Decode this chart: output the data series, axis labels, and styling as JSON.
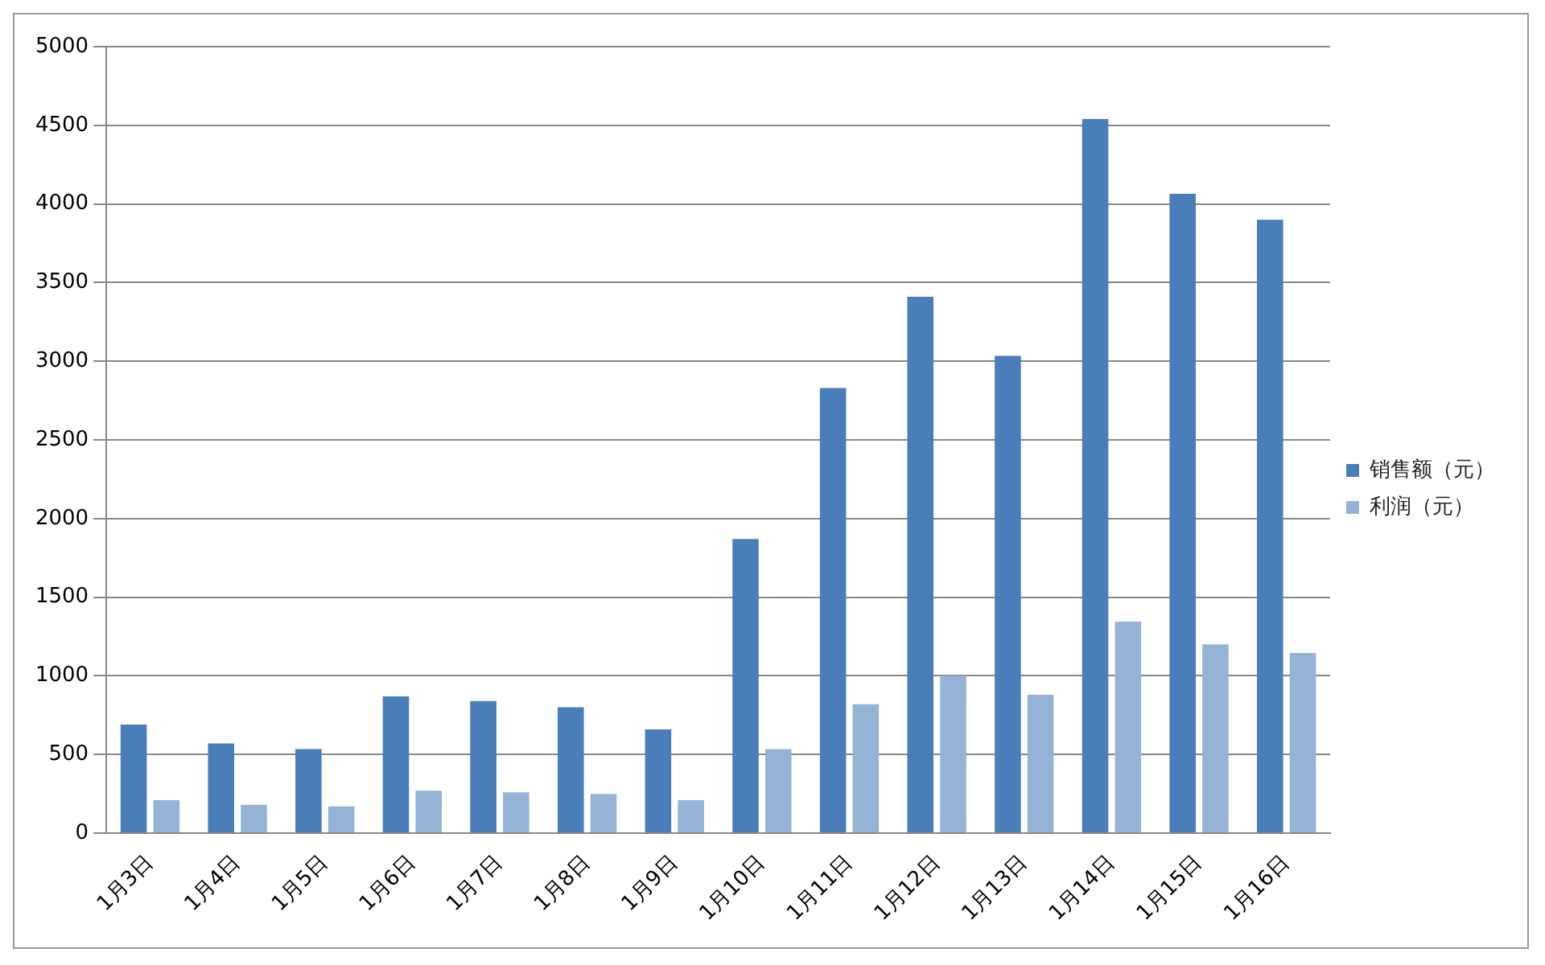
{
  "chart_data": {
    "type": "bar",
    "categories": [
      "1月3日",
      "1月4日",
      "1月5日",
      "1月6日",
      "1月7日",
      "1月8日",
      "1月9日",
      "1月10日",
      "1月11日",
      "1月12日",
      "1月13日",
      "1月14日",
      "1月15日",
      "1月16日"
    ],
    "series": [
      {
        "name": "销售额（元）",
        "color": "#4a7ebb",
        "values": [
          690,
          570,
          535,
          870,
          840,
          800,
          660,
          1870,
          2830,
          3410,
          3035,
          4540,
          4065,
          3900
        ]
      },
      {
        "name": "利润（元）",
        "color": "#95b3d7",
        "values": [
          210,
          180,
          170,
          270,
          260,
          250,
          210,
          535,
          820,
          1000,
          880,
          1345,
          1200,
          1145
        ]
      }
    ],
    "ylim": [
      0,
      5000
    ],
    "yticks": [
      0,
      500,
      1000,
      1500,
      2000,
      2500,
      3000,
      3500,
      4000,
      4500,
      5000
    ],
    "grid": "y",
    "legend": "right"
  }
}
